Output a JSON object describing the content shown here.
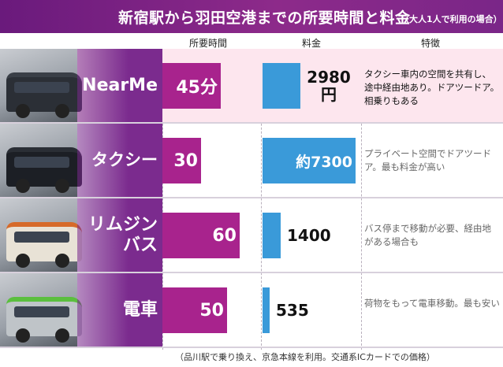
{
  "title": "新宿駅から羽田空港までの所要時間と料金",
  "title_note": "（大人1人で利用の場合）",
  "columns": {
    "time": "所要時間",
    "fare": "料金",
    "feature": "特徴"
  },
  "footer_note": "（品川駅で乗り換え、京急本線を利用。交通系ICカードでの価格）",
  "colors": {
    "title_bg": "#7a2688",
    "time_bar": "#a8238d",
    "fare_bar": "#3a9ad9",
    "highlight_row": "#fde6ee"
  },
  "chart_data": {
    "type": "bar",
    "categories": [
      "NearMe",
      "タクシー",
      "リムジンバス",
      "電車"
    ],
    "series": [
      {
        "name": "所要時間",
        "values": [
          45,
          30,
          60,
          50
        ],
        "labels": [
          "45分",
          "30",
          "60",
          "50"
        ]
      },
      {
        "name": "料金",
        "values": [
          2980,
          7300,
          1400,
          535
        ],
        "labels": [
          "2980円",
          "約7300",
          "1400",
          "535"
        ]
      }
    ],
    "title": "新宿駅から羽田空港までの所要時間と料金"
  },
  "rows": [
    {
      "name": "NearMe",
      "photo": "van-photo",
      "time_label": "45分",
      "fare_label": "2980円",
      "feature": "タクシー車内の空間を共有し、途中経由地あり。ドアツードア。相乗りもある",
      "highlight": true
    },
    {
      "name": "タクシー",
      "photo": "taxi-photo",
      "time_label": "30",
      "fare_label": "約7300",
      "feature": "プライベート空間でドアツードア。最も料金が高い",
      "highlight": false
    },
    {
      "name": "リムジンバス",
      "photo": "bus-photo",
      "time_label": "60",
      "fare_label": "1400",
      "feature": "バス停まで移動が必要、経由地がある場合も",
      "highlight": false
    },
    {
      "name": "電車",
      "photo": "train-photo",
      "time_label": "50",
      "fare_label": "535",
      "feature": "荷物をもって電車移動。最も安い",
      "highlight": false
    }
  ]
}
